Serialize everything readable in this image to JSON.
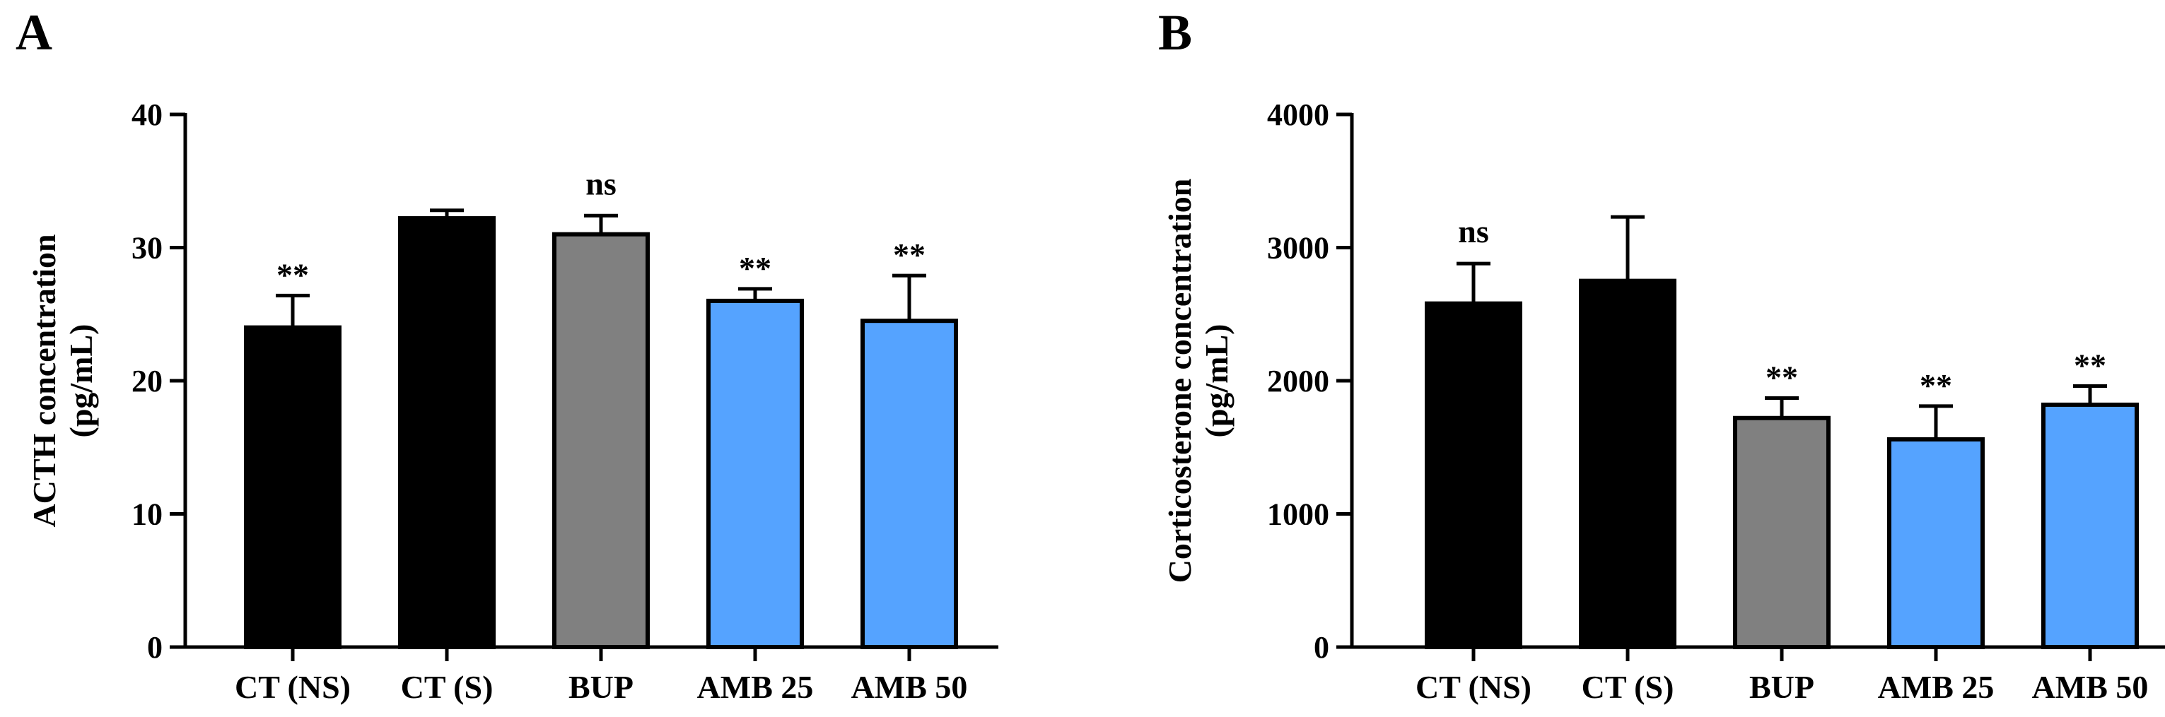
{
  "colors": {
    "black": "#000000",
    "gray": "#808080",
    "blue": "#55a3ff"
  },
  "chart_data": [
    {
      "type": "bar",
      "panel": "A",
      "title": "",
      "xlabel": "",
      "ylabel": "ACTH concentration",
      "ylabel2": "(pg/mL)",
      "categories": [
        "CT (NS)",
        "CT (S)",
        "BUP",
        "AMB 25",
        "AMB 50"
      ],
      "values": [
        24.0,
        32.2,
        31.0,
        26.0,
        24.5
      ],
      "errors": [
        2.4,
        0.6,
        1.4,
        0.9,
        3.4
      ],
      "bar_colors": [
        "black",
        "black",
        "gray",
        "blue",
        "blue"
      ],
      "significance": [
        "**",
        "",
        "ns",
        "**",
        "**"
      ],
      "ylim": [
        0,
        40
      ],
      "yticks": [
        0,
        10,
        20,
        30,
        40
      ],
      "grid": false
    },
    {
      "type": "bar",
      "panel": "B",
      "title": "",
      "xlabel": "",
      "ylabel": "Corticosterone concentration",
      "ylabel2": "(pg/mL)",
      "categories": [
        "CT (NS)",
        "CT (S)",
        "BUP",
        "AMB 25",
        "AMB 50"
      ],
      "values": [
        2580,
        2750,
        1720,
        1560,
        1820
      ],
      "errors": [
        300,
        480,
        150,
        250,
        140
      ],
      "bar_colors": [
        "black",
        "black",
        "gray",
        "blue",
        "blue"
      ],
      "significance": [
        "ns",
        "",
        "**",
        "**",
        "**"
      ],
      "ylim": [
        0,
        4000
      ],
      "yticks": [
        0,
        1000,
        2000,
        3000,
        4000
      ],
      "grid": false
    }
  ]
}
